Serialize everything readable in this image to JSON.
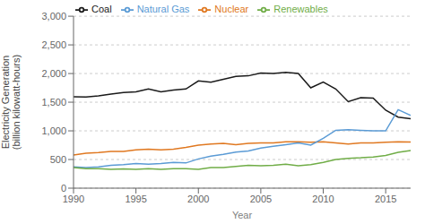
{
  "chart_data": {
    "type": "line",
    "xlabel": "Year",
    "ylabel": "Electricity Generation\n(billion kilowatt-hours)",
    "x": [
      1990,
      1991,
      1992,
      1993,
      1994,
      1995,
      1996,
      1997,
      1998,
      1999,
      2000,
      2001,
      2002,
      2003,
      2004,
      2005,
      2006,
      2007,
      2008,
      2009,
      2010,
      2011,
      2012,
      2013,
      2014,
      2015,
      2016,
      2017
    ],
    "series": [
      {
        "name": "Coal",
        "color": "#1a1a1a",
        "values": [
          1594,
          1590,
          1610,
          1640,
          1670,
          1680,
          1730,
          1680,
          1710,
          1730,
          1870,
          1850,
          1900,
          1950,
          1960,
          2010,
          2000,
          2020,
          2000,
          1750,
          1850,
          1730,
          1510,
          1580,
          1570,
          1360,
          1240,
          1210
        ]
      },
      {
        "name": "Nuclear",
        "color": "#e07820",
        "values": [
          580,
          610,
          620,
          640,
          640,
          670,
          680,
          670,
          680,
          710,
          750,
          770,
          780,
          760,
          780,
          790,
          790,
          810,
          810,
          800,
          810,
          790,
          770,
          790,
          790,
          800,
          810,
          805
        ]
      },
      {
        "name": "Natural Gas",
        "color": "#5b9bd5",
        "values": [
          370,
          360,
          370,
          400,
          410,
          430,
          420,
          430,
          450,
          440,
          510,
          560,
          590,
          630,
          650,
          700,
          730,
          760,
          790,
          750,
          870,
          1010,
          1020,
          1010,
          1000,
          1000,
          1370,
          1270
        ]
      },
      {
        "name": "Renewables",
        "color": "#70ad47",
        "values": [
          360,
          340,
          340,
          330,
          335,
          330,
          340,
          330,
          340,
          340,
          330,
          360,
          360,
          380,
          400,
          390,
          400,
          420,
          390,
          410,
          450,
          500,
          520,
          530,
          545,
          570,
          625,
          655
        ]
      }
    ],
    "xlim": [
      1990,
      2017
    ],
    "xticks": [
      1990,
      1995,
      2000,
      2005,
      2010,
      2015
    ],
    "ylim": [
      0,
      3000
    ],
    "yticks": [
      0,
      500,
      {
        "value": 1000,
        "label": "1,000"
      },
      {
        "value": 1500,
        "label": "1,500"
      },
      {
        "value": 2000,
        "label": "2,000"
      },
      {
        "value": 2500,
        "label": "2,500"
      },
      {
        "value": 3000,
        "label": "3,000"
      }
    ],
    "grid": true,
    "legend": "upper left"
  }
}
